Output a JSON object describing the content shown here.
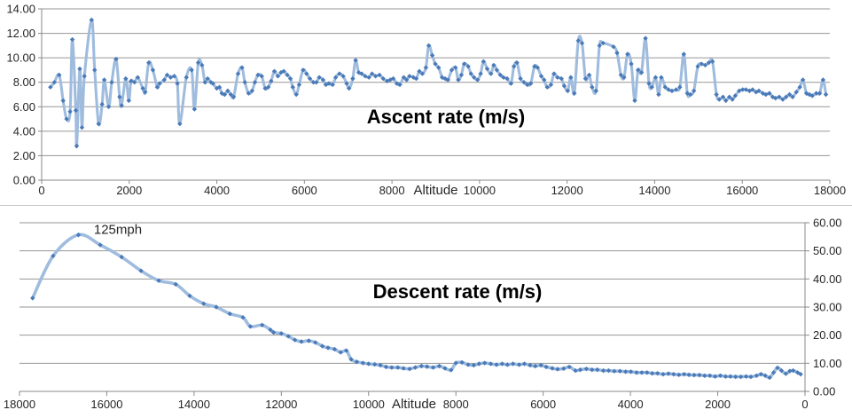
{
  "page": {
    "background": "#ffffff",
    "divider_color": "#c9c9c9"
  },
  "colors": {
    "line": "#9fbcde",
    "marker": "#4a7ab8",
    "grid": "#969696",
    "axis": "#8a8a8a",
    "tick_text": "#262626",
    "title_text": "#000000"
  },
  "chart_data": [
    {
      "type": "line",
      "title": "Ascent rate (m/s)",
      "x_axis_title": "Altitude",
      "x_reversed": false,
      "x_range": [
        0,
        18000
      ],
      "x_ticks": [
        "0",
        "2000",
        "4000",
        "6000",
        "8000",
        "10000",
        "12000",
        "14000",
        "16000",
        "18000"
      ],
      "y_range": [
        0,
        14
      ],
      "y_ticks": [
        "0.00",
        "2.00",
        "4.00",
        "6.00",
        "8.00",
        "10.00",
        "12.00",
        "14.00"
      ],
      "y_axis_side": "left",
      "grid": true,
      "legend": "none",
      "annotation": null,
      "points": [
        [
          200,
          7.6
        ],
        [
          290,
          8.0
        ],
        [
          400,
          8.6
        ],
        [
          490,
          6.5
        ],
        [
          570,
          5.0
        ],
        [
          650,
          5.6
        ],
        [
          700,
          11.5
        ],
        [
          780,
          5.7
        ],
        [
          800,
          2.8
        ],
        [
          870,
          9.1
        ],
        [
          920,
          4.3
        ],
        [
          975,
          8.5
        ],
        [
          1140,
          13.1
        ],
        [
          1210,
          9.0
        ],
        [
          1300,
          4.6
        ],
        [
          1380,
          6.2
        ],
        [
          1430,
          8.2
        ],
        [
          1530,
          6.0
        ],
        [
          1600,
          8.0
        ],
        [
          1700,
          9.9
        ],
        [
          1780,
          6.8
        ],
        [
          1825,
          6.1
        ],
        [
          1920,
          8.3
        ],
        [
          1990,
          6.5
        ],
        [
          2040,
          8.1
        ],
        [
          2120,
          8.0
        ],
        [
          2195,
          8.4
        ],
        [
          2310,
          7.5
        ],
        [
          2365,
          7.2
        ],
        [
          2445,
          9.6
        ],
        [
          2540,
          9.0
        ],
        [
          2640,
          7.6
        ],
        [
          2695,
          7.9
        ],
        [
          2800,
          8.2
        ],
        [
          2865,
          8.6
        ],
        [
          2945,
          8.4
        ],
        [
          3030,
          8.5
        ],
        [
          3100,
          7.9
        ],
        [
          3155,
          4.6
        ],
        [
          3305,
          8.4
        ],
        [
          3425,
          9.0
        ],
        [
          3490,
          5.8
        ],
        [
          3575,
          9.6
        ],
        [
          3660,
          9.4
        ],
        [
          3730,
          8.0
        ],
        [
          3790,
          8.3
        ],
        [
          3865,
          8.0
        ],
        [
          3910,
          7.9
        ],
        [
          4000,
          7.5
        ],
        [
          4060,
          7.6
        ],
        [
          4115,
          7.1
        ],
        [
          4180,
          7.0
        ],
        [
          4250,
          7.3
        ],
        [
          4320,
          7.0
        ],
        [
          4385,
          6.8
        ],
        [
          4485,
          8.7
        ],
        [
          4575,
          9.2
        ],
        [
          4640,
          8.0
        ],
        [
          4725,
          7.1
        ],
        [
          4805,
          7.3
        ],
        [
          4870,
          8.0
        ],
        [
          4940,
          8.6
        ],
        [
          5025,
          8.5
        ],
        [
          5105,
          7.5
        ],
        [
          5175,
          7.6
        ],
        [
          5240,
          8.1
        ],
        [
          5315,
          8.9
        ],
        [
          5395,
          8.5
        ],
        [
          5465,
          8.8
        ],
        [
          5530,
          8.9
        ],
        [
          5610,
          8.6
        ],
        [
          5680,
          8.3
        ],
        [
          5735,
          7.6
        ],
        [
          5815,
          7.0
        ],
        [
          5880,
          7.8
        ],
        [
          5970,
          9.0
        ],
        [
          6050,
          8.7
        ],
        [
          6125,
          8.3
        ],
        [
          6205,
          8.0
        ],
        [
          6275,
          8.0
        ],
        [
          6340,
          8.4
        ],
        [
          6425,
          8.2
        ],
        [
          6490,
          7.8
        ],
        [
          6560,
          7.9
        ],
        [
          6645,
          7.8
        ],
        [
          6715,
          8.4
        ],
        [
          6800,
          8.7
        ],
        [
          6885,
          8.5
        ],
        [
          6965,
          7.9
        ],
        [
          7020,
          7.5
        ],
        [
          7105,
          8.3
        ],
        [
          7170,
          9.8
        ],
        [
          7240,
          8.8
        ],
        [
          7310,
          8.7
        ],
        [
          7390,
          8.5
        ],
        [
          7475,
          8.4
        ],
        [
          7545,
          8.7
        ],
        [
          7625,
          8.5
        ],
        [
          7715,
          8.6
        ],
        [
          7800,
          8.3
        ],
        [
          7890,
          8.1
        ],
        [
          7960,
          8.2
        ],
        [
          8030,
          8.3
        ],
        [
          8110,
          7.9
        ],
        [
          8180,
          7.8
        ],
        [
          8270,
          8.4
        ],
        [
          8335,
          8.2
        ],
        [
          8400,
          8.5
        ],
        [
          8490,
          8.4
        ],
        [
          8555,
          8.3
        ],
        [
          8625,
          8.9
        ],
        [
          8695,
          8.7
        ],
        [
          8775,
          9.2
        ],
        [
          8840,
          11.0
        ],
        [
          8920,
          10.2
        ],
        [
          8990,
          9.5
        ],
        [
          9065,
          9.2
        ],
        [
          9145,
          8.4
        ],
        [
          9215,
          8.3
        ],
        [
          9280,
          8.2
        ],
        [
          9365,
          9.0
        ],
        [
          9450,
          9.2
        ],
        [
          9515,
          8.2
        ],
        [
          9585,
          8.6
        ],
        [
          9650,
          9.5
        ],
        [
          9740,
          9.3
        ],
        [
          9805,
          8.7
        ],
        [
          9875,
          8.4
        ],
        [
          9955,
          8.2
        ],
        [
          10025,
          8.7
        ],
        [
          10090,
          9.7
        ],
        [
          10175,
          9.1
        ],
        [
          10260,
          8.7
        ],
        [
          10325,
          9.4
        ],
        [
          10395,
          9.0
        ],
        [
          10475,
          8.6
        ],
        [
          10545,
          8.4
        ],
        [
          10630,
          8.3
        ],
        [
          10720,
          7.9
        ],
        [
          10785,
          9.3
        ],
        [
          10855,
          9.6
        ],
        [
          10935,
          8.3
        ],
        [
          11015,
          8.0
        ],
        [
          11090,
          7.8
        ],
        [
          11170,
          7.9
        ],
        [
          11255,
          9.3
        ],
        [
          11325,
          9.2
        ],
        [
          11410,
          8.5
        ],
        [
          11475,
          8.2
        ],
        [
          11545,
          7.6
        ],
        [
          11630,
          7.8
        ],
        [
          11700,
          8.7
        ],
        [
          11780,
          8.4
        ],
        [
          11870,
          8.3
        ],
        [
          11935,
          7.7
        ],
        [
          12015,
          7.3
        ],
        [
          12085,
          8.4
        ],
        [
          12165,
          7.1
        ],
        [
          12255,
          11.4
        ],
        [
          12340,
          11.2
        ],
        [
          12420,
          8.3
        ],
        [
          12505,
          8.6
        ],
        [
          12570,
          7.6
        ],
        [
          12660,
          7.3
        ],
        [
          12740,
          11.0
        ],
        [
          12820,
          11.2
        ],
        [
          13060,
          10.9
        ],
        [
          13140,
          10.4
        ],
        [
          13230,
          8.6
        ],
        [
          13300,
          8.4
        ],
        [
          13380,
          10.3
        ],
        [
          13465,
          9.5
        ],
        [
          13545,
          6.5
        ],
        [
          13620,
          9.0
        ],
        [
          13700,
          8.8
        ],
        [
          13790,
          11.6
        ],
        [
          13870,
          7.9
        ],
        [
          13935,
          7.6
        ],
        [
          14020,
          8.4
        ],
        [
          14090,
          7.0
        ],
        [
          14150,
          8.4
        ],
        [
          14240,
          7.6
        ],
        [
          14315,
          7.4
        ],
        [
          14395,
          7.3
        ],
        [
          14490,
          7.4
        ],
        [
          14575,
          7.6
        ],
        [
          14665,
          10.3
        ],
        [
          14745,
          7.1
        ],
        [
          14815,
          7.0
        ],
        [
          14895,
          7.3
        ],
        [
          14985,
          9.3
        ],
        [
          15070,
          9.5
        ],
        [
          15155,
          9.4
        ],
        [
          15235,
          9.6
        ],
        [
          15320,
          9.7
        ],
        [
          15410,
          7.0
        ],
        [
          15475,
          6.6
        ],
        [
          15560,
          6.8
        ],
        [
          15625,
          6.5
        ],
        [
          15705,
          6.8
        ],
        [
          15775,
          6.6
        ],
        [
          15840,
          6.9
        ],
        [
          15930,
          7.3
        ],
        [
          16010,
          7.4
        ],
        [
          16085,
          7.4
        ],
        [
          16165,
          7.3
        ],
        [
          16235,
          7.4
        ],
        [
          16315,
          7.2
        ],
        [
          16380,
          7.3
        ],
        [
          16470,
          7.1
        ],
        [
          16540,
          7.0
        ],
        [
          16620,
          7.1
        ],
        [
          16695,
          6.8
        ],
        [
          16760,
          6.7
        ],
        [
          16845,
          6.8
        ],
        [
          16925,
          6.6
        ],
        [
          17000,
          6.8
        ],
        [
          17080,
          7.0
        ],
        [
          17150,
          6.8
        ],
        [
          17235,
          7.2
        ],
        [
          17315,
          7.6
        ],
        [
          17385,
          8.2
        ],
        [
          17465,
          7.1
        ],
        [
          17535,
          7.0
        ],
        [
          17600,
          6.9
        ],
        [
          17690,
          7.1
        ],
        [
          17770,
          7.1
        ],
        [
          17845,
          8.2
        ],
        [
          17910,
          7.0
        ]
      ]
    },
    {
      "type": "line",
      "title": "Descent rate (m/s)",
      "x_axis_title": "Altitude",
      "x_reversed": true,
      "x_range": [
        0,
        18000
      ],
      "x_ticks": [
        "18000",
        "16000",
        "14000",
        "12000",
        "10000",
        "8000",
        "6000",
        "4000",
        "2000",
        "0"
      ],
      "y_range": [
        0,
        60
      ],
      "y_ticks": [
        "0.00",
        "10.00",
        "20.00",
        "30.00",
        "40.00",
        "50.00",
        "60.00"
      ],
      "y_axis_side": "right",
      "grid": true,
      "legend": "none",
      "annotation": {
        "text": "125mph",
        "x": 15745,
        "y": 57.7
      },
      "points": [
        [
          17700,
          33.2
        ],
        [
          17230,
          48.2
        ],
        [
          16650,
          55.7
        ],
        [
          16150,
          52.1
        ],
        [
          15660,
          47.8
        ],
        [
          15215,
          42.9
        ],
        [
          14810,
          39.4
        ],
        [
          14420,
          38.1
        ],
        [
          14100,
          34.0
        ],
        [
          13780,
          31.2
        ],
        [
          13490,
          30.0
        ],
        [
          13180,
          27.6
        ],
        [
          12880,
          26.3
        ],
        [
          12710,
          23.1
        ],
        [
          12440,
          23.6
        ],
        [
          12250,
          21.9
        ],
        [
          12180,
          21.0
        ],
        [
          12000,
          20.6
        ],
        [
          11840,
          19.6
        ],
        [
          11690,
          18.3
        ],
        [
          11540,
          17.7
        ],
        [
          11370,
          18.0
        ],
        [
          11220,
          17.4
        ],
        [
          11060,
          16.1
        ],
        [
          10930,
          15.5
        ],
        [
          10780,
          15.0
        ],
        [
          10640,
          13.9
        ],
        [
          10510,
          14.5
        ],
        [
          10400,
          11.4
        ],
        [
          10270,
          10.5
        ],
        [
          10130,
          10.1
        ],
        [
          10000,
          9.8
        ],
        [
          9860,
          9.6
        ],
        [
          9730,
          9.3
        ],
        [
          9600,
          8.7
        ],
        [
          9470,
          8.5
        ],
        [
          9330,
          8.5
        ],
        [
          9200,
          8.2
        ],
        [
          9060,
          8.0
        ],
        [
          8930,
          8.5
        ],
        [
          8790,
          9.0
        ],
        [
          8660,
          8.8
        ],
        [
          8520,
          8.5
        ],
        [
          8380,
          9.0
        ],
        [
          8250,
          8.2
        ],
        [
          8110,
          7.6
        ],
        [
          8000,
          10.1
        ],
        [
          7860,
          10.3
        ],
        [
          7720,
          9.5
        ],
        [
          7590,
          9.3
        ],
        [
          7470,
          9.8
        ],
        [
          7340,
          10.1
        ],
        [
          7200,
          9.8
        ],
        [
          7070,
          9.5
        ],
        [
          6940,
          9.8
        ],
        [
          6820,
          9.5
        ],
        [
          6690,
          9.8
        ],
        [
          6550,
          9.5
        ],
        [
          6430,
          9.8
        ],
        [
          6300,
          9.3
        ],
        [
          6180,
          9.0
        ],
        [
          6050,
          9.3
        ],
        [
          5930,
          8.7
        ],
        [
          5790,
          8.2
        ],
        [
          5670,
          7.9
        ],
        [
          5530,
          8.1
        ],
        [
          5400,
          8.7
        ],
        [
          5260,
          7.4
        ],
        [
          5150,
          7.7
        ],
        [
          5010,
          8.0
        ],
        [
          4880,
          7.7
        ],
        [
          4760,
          7.7
        ],
        [
          4620,
          7.4
        ],
        [
          4500,
          7.4
        ],
        [
          4370,
          7.2
        ],
        [
          4240,
          7.2
        ],
        [
          4110,
          7.0
        ],
        [
          3990,
          7.0
        ],
        [
          3860,
          6.7
        ],
        [
          3740,
          6.7
        ],
        [
          3620,
          6.7
        ],
        [
          3500,
          6.4
        ],
        [
          3380,
          6.4
        ],
        [
          3250,
          6.1
        ],
        [
          3130,
          6.3
        ],
        [
          3010,
          6.1
        ],
        [
          2890,
          5.9
        ],
        [
          2770,
          6.1
        ],
        [
          2660,
          5.9
        ],
        [
          2540,
          5.8
        ],
        [
          2420,
          5.8
        ],
        [
          2300,
          5.6
        ],
        [
          2180,
          5.6
        ],
        [
          2060,
          5.3
        ],
        [
          1940,
          5.6
        ],
        [
          1820,
          5.3
        ],
        [
          1710,
          5.3
        ],
        [
          1590,
          5.2
        ],
        [
          1470,
          5.2
        ],
        [
          1350,
          5.3
        ],
        [
          1240,
          5.2
        ],
        [
          1110,
          5.6
        ],
        [
          1010,
          6.1
        ],
        [
          910,
          5.6
        ],
        [
          810,
          4.9
        ],
        [
          720,
          6.7
        ],
        [
          630,
          8.4
        ],
        [
          540,
          7.4
        ],
        [
          440,
          6.3
        ],
        [
          350,
          7.2
        ],
        [
          270,
          7.4
        ],
        [
          170,
          6.7
        ],
        [
          100,
          6.1
        ]
      ]
    }
  ]
}
